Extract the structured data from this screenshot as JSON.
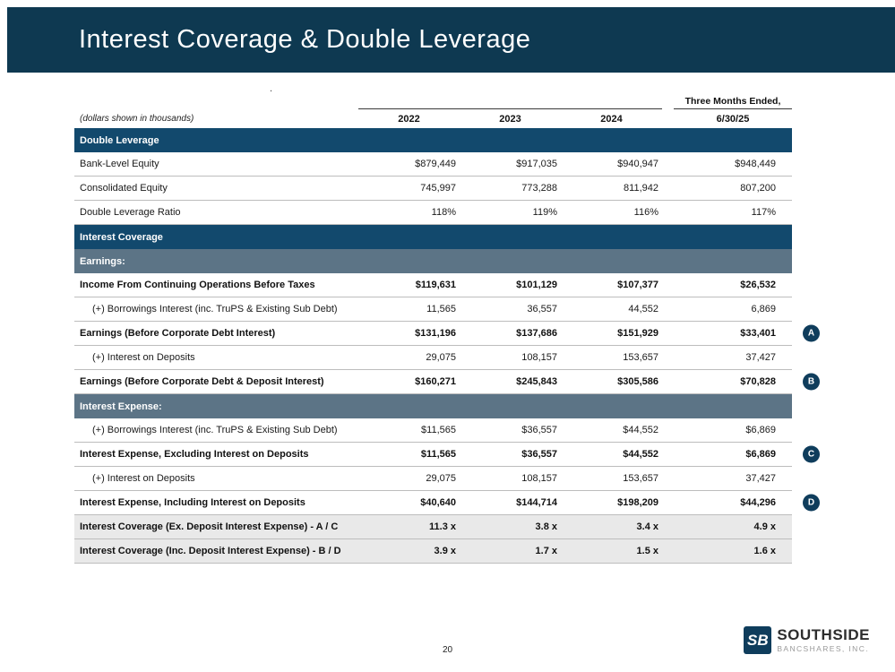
{
  "slide": {
    "title": "Interest Coverage & Double Leverage",
    "page_number": "20",
    "stray_mark": "."
  },
  "colors": {
    "header_bar": "#0e3951",
    "section_row": "#12496d",
    "subsection_row": "#5c7486",
    "badge": "#0f3d5c",
    "shaded_row": "#e9e9e9"
  },
  "table": {
    "units_note": "(dollars shown in thousands)",
    "period_header": "Three Months Ended,",
    "period_subheader": "6/30/25",
    "year_headers": [
      "2022",
      "2023",
      "2024"
    ],
    "rows": [
      {
        "type": "section",
        "label": "Double Leverage"
      },
      {
        "type": "data",
        "label": "Bank-Level Equity",
        "values": [
          "$879,449",
          "$917,035",
          "$940,947",
          "$948,449"
        ]
      },
      {
        "type": "data",
        "label": "Consolidated Equity",
        "values": [
          "745,997",
          "773,288",
          "811,942",
          "807,200"
        ]
      },
      {
        "type": "data",
        "label": "Double Leverage Ratio",
        "values": [
          "118%",
          "119%",
          "116%",
          "117%"
        ]
      },
      {
        "type": "section",
        "label": "Interest Coverage"
      },
      {
        "type": "subsection",
        "label": "Earnings:"
      },
      {
        "type": "data",
        "label": "Income From Continuing Operations Before Taxes",
        "bold": true,
        "values": [
          "$119,631",
          "$101,129",
          "$107,377",
          "$26,532"
        ]
      },
      {
        "type": "data",
        "label": "(+) Borrowings Interest (inc. TruPS & Existing Sub Debt)",
        "indent": true,
        "values": [
          "11,565",
          "36,557",
          "44,552",
          "6,869"
        ]
      },
      {
        "type": "data",
        "label": "Earnings (Before Corporate Debt Interest)",
        "bold": true,
        "badge": "A",
        "values": [
          "$131,196",
          "$137,686",
          "$151,929",
          "$33,401"
        ]
      },
      {
        "type": "data",
        "label": "(+) Interest on Deposits",
        "indent": true,
        "values": [
          "29,075",
          "108,157",
          "153,657",
          "37,427"
        ]
      },
      {
        "type": "data",
        "label": "Earnings (Before Corporate Debt & Deposit Interest)",
        "bold": true,
        "badge": "B",
        "values": [
          "$160,271",
          "$245,843",
          "$305,586",
          "$70,828"
        ]
      },
      {
        "type": "subsection",
        "label": "Interest Expense:"
      },
      {
        "type": "data",
        "label": "(+) Borrowings Interest (inc. TruPS & Existing Sub Debt)",
        "indent": true,
        "values": [
          "$11,565",
          "$36,557",
          "$44,552",
          "$6,869"
        ]
      },
      {
        "type": "data",
        "label": "Interest Expense, Excluding Interest on Deposits",
        "bold": true,
        "badge": "C",
        "values": [
          "$11,565",
          "$36,557",
          "$44,552",
          "$6,869"
        ]
      },
      {
        "type": "data",
        "label": "(+) Interest on Deposits",
        "indent": true,
        "values": [
          "29,075",
          "108,157",
          "153,657",
          "37,427"
        ]
      },
      {
        "type": "data",
        "label": "Interest Expense, Including Interest on Deposits",
        "bold": true,
        "badge": "D",
        "values": [
          "$40,640",
          "$144,714",
          "$198,209",
          "$44,296"
        ]
      },
      {
        "type": "data",
        "label": "Interest Coverage (Ex. Deposit Interest Expense) - A / C",
        "bold": true,
        "shaded": true,
        "values": [
          "11.3 x",
          "3.8 x",
          "3.4 x",
          "4.9 x"
        ]
      },
      {
        "type": "data",
        "label": "Interest Coverage (Inc. Deposit Interest Expense) - B / D",
        "bold": true,
        "shaded": true,
        "values": [
          "3.9 x",
          "1.7 x",
          "1.5 x",
          "1.6 x"
        ]
      }
    ]
  },
  "logo": {
    "mark": "SB",
    "name": "SOUTHSIDE",
    "subname": "BANCSHARES, INC."
  }
}
